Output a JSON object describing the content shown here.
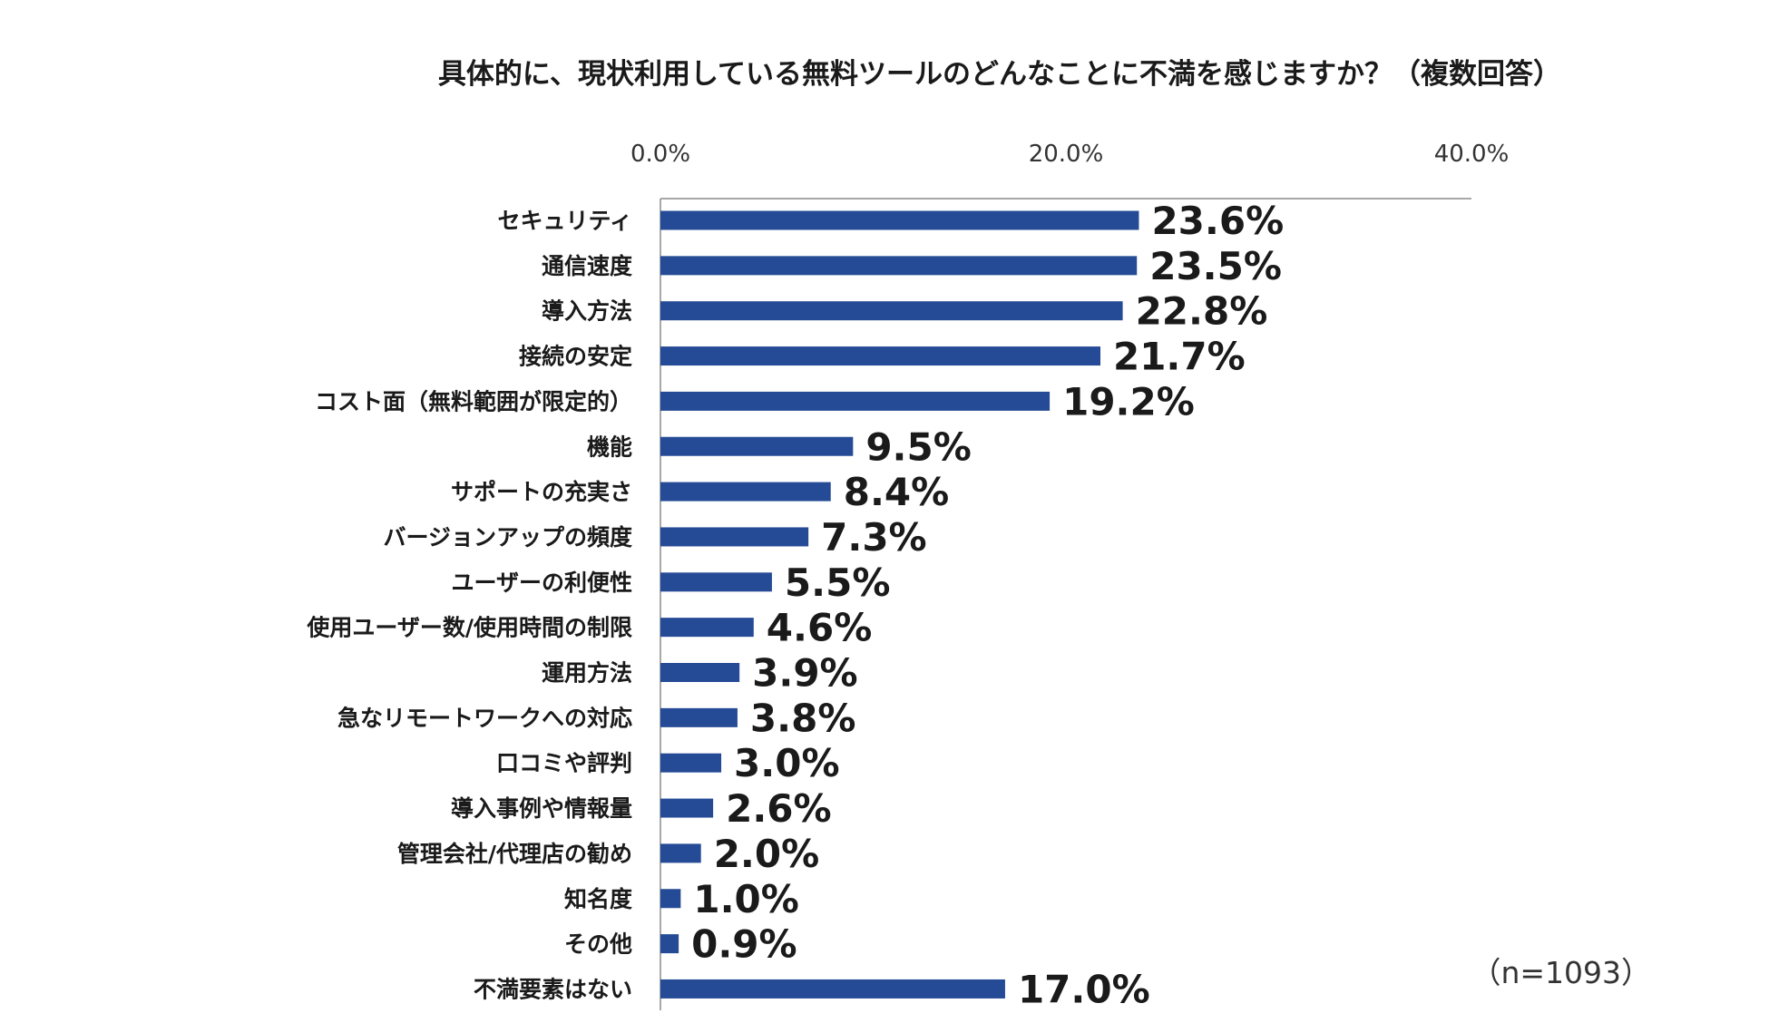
{
  "chart_data": {
    "type": "bar",
    "orientation": "horizontal",
    "title": "具体的に、現状利用している無料ツールのどんなことに不満を感じますか？（複数回答）",
    "categories": [
      "セキュリティ",
      "通信速度",
      "導入方法",
      "接続の安定",
      "コスト面（無料範囲が限定的）",
      "機能",
      "サポートの充実さ",
      "バージョンアップの頻度",
      "ユーザーの利便性",
      "使用ユーザー数/使用時間の制限",
      "運用方法",
      "急なリモートワークへの対応",
      "口コミや評判",
      "導入事例や情報量",
      "管理会社/代理店の勧め",
      "知名度",
      "その他",
      "不満要素はない"
    ],
    "values": [
      23.6,
      23.5,
      22.8,
      21.7,
      19.2,
      9.5,
      8.4,
      7.3,
      5.5,
      4.6,
      3.9,
      3.8,
      3.0,
      2.6,
      2.0,
      1.0,
      0.9,
      17.0
    ],
    "value_labels": [
      "23.6%",
      "23.5%",
      "22.8%",
      "21.7%",
      "19.2%",
      "9.5%",
      "8.4%",
      "7.3%",
      "5.5%",
      "4.6%",
      "3.9%",
      "3.8%",
      "3.0%",
      "2.6%",
      "2.0%",
      "1.0%",
      "0.9%",
      "17.0%"
    ],
    "xlim": [
      0,
      40
    ],
    "x_ticks": [
      "0.0%",
      "20.0%",
      "40.0%"
    ],
    "x_axis_position": "top",
    "grid": false,
    "legend": "none",
    "note": "（n=1093）",
    "colors": {
      "bar": "#264b96",
      "axis": "#8c8c8c"
    }
  }
}
